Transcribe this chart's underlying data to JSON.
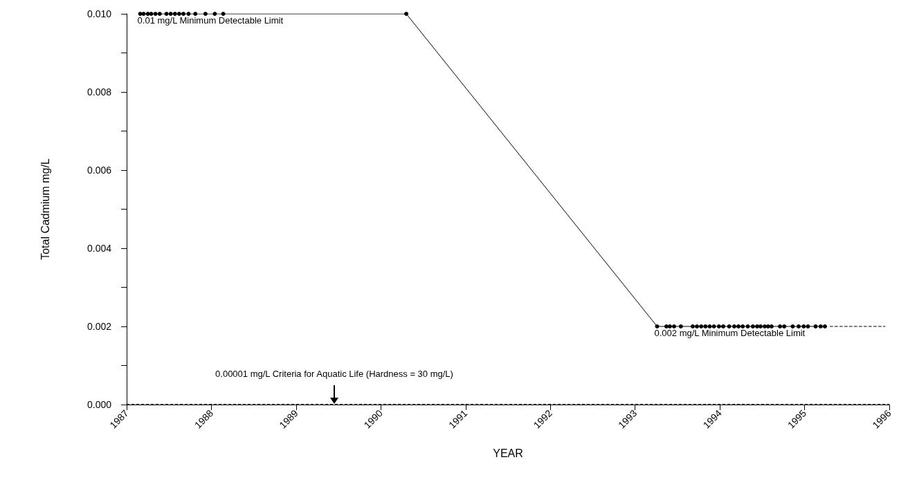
{
  "chart_data": {
    "type": "line",
    "xlabel": "YEAR",
    "ylabel": "Total Cadmium mg/L",
    "xlim": [
      1987,
      1996
    ],
    "xticks": [
      1987,
      1988,
      1989,
      1990,
      1991,
      1992,
      1993,
      1994,
      1995,
      1996
    ],
    "ylim": [
      0,
      0.01
    ],
    "yticks": [
      {
        "value": 0,
        "label": "0.000"
      },
      {
        "value": 0.001,
        "label": null
      },
      {
        "value": 0.002,
        "label": "0.002"
      },
      {
        "value": 0.003,
        "label": null
      },
      {
        "value": 0.004,
        "label": "0.004"
      },
      {
        "value": 0.005,
        "label": null
      },
      {
        "value": 0.006,
        "label": "0.006"
      },
      {
        "value": 0.007,
        "label": null
      },
      {
        "value": 0.008,
        "label": "0.008"
      },
      {
        "value": 0.009,
        "label": null
      },
      {
        "value": 0.01,
        "label": "0.010"
      }
    ],
    "series": [
      {
        "color": "#000000",
        "marker": "circle",
        "line_style": "solid",
        "x": [
          1987.16,
          1987.2,
          1987.25,
          1987.29,
          1987.34,
          1987.39,
          1987.47,
          1987.52,
          1987.57,
          1987.62,
          1987.67,
          1987.73,
          1987.81,
          1987.93,
          1988.04,
          1988.14,
          1990.3,
          1993.26,
          1993.37,
          1993.41,
          1993.46,
          1993.54,
          1993.68,
          1993.73,
          1993.78,
          1993.83,
          1993.88,
          1993.93,
          1993.99,
          1994.04,
          1994.11,
          1994.17,
          1994.22,
          1994.27,
          1994.33,
          1994.39,
          1994.44,
          1994.48,
          1994.53,
          1994.57,
          1994.61,
          1994.71,
          1994.76,
          1994.86,
          1994.93,
          1994.99,
          1995.04,
          1995.13,
          1995.19,
          1995.24
        ],
        "values": [
          0.01,
          0.01,
          0.01,
          0.01,
          0.01,
          0.01,
          0.01,
          0.01,
          0.01,
          0.01,
          0.01,
          0.01,
          0.01,
          0.01,
          0.01,
          0.01,
          0.01,
          0.002,
          0.002,
          0.002,
          0.002,
          0.002,
          0.002,
          0.002,
          0.002,
          0.002,
          0.002,
          0.002,
          0.002,
          0.002,
          0.002,
          0.002,
          0.002,
          0.002,
          0.002,
          0.002,
          0.002,
          0.002,
          0.002,
          0.002,
          0.002,
          0.002,
          0.002,
          0.002,
          0.002,
          0.002,
          0.002,
          0.002,
          0.002,
          0.002
        ]
      },
      {
        "color": "#000000",
        "marker": "none",
        "line_style": "dashed",
        "x": [
          1995.3,
          1995.95
        ],
        "values": [
          0.002,
          0.002
        ]
      }
    ],
    "ref_lines": [
      {
        "axis": "y",
        "value": 0,
        "color": "#000000",
        "line_style": "dashed"
      }
    ],
    "annotations": [
      {
        "text": "0.01 mg/L Minimum Detectable Limit",
        "x": 1987.16,
        "y": 0.01
      },
      {
        "text": "0.002 mg/L Minimum Detectable Limit",
        "x": 1993.26,
        "y": 0.002
      },
      {
        "text": "0.00001 mg/L Criteria for Aquatic Life (Hardness = 30 mg/L)",
        "x": 1989.45,
        "y": 0
      }
    ],
    "grid": false
  }
}
